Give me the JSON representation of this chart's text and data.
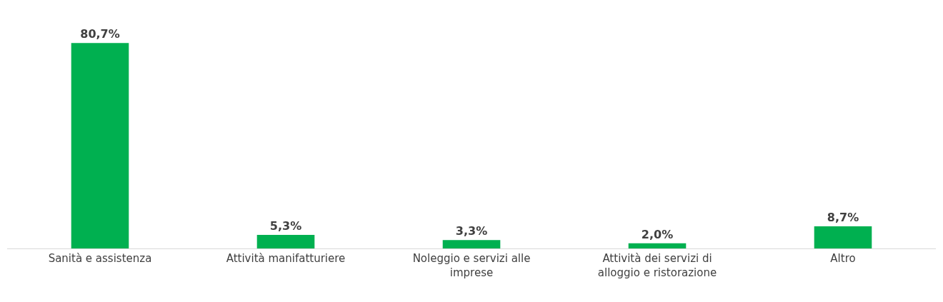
{
  "chart_data": {
    "type": "bar",
    "categories": [
      "Sanità e assistenza",
      "Attività manifatturiere",
      "Noleggio e servizi alle imprese",
      "Attività dei servizi di alloggio e ristorazione",
      "Altro"
    ],
    "values": [
      80.7,
      5.3,
      3.3,
      2.0,
      8.7
    ],
    "value_labels": [
      "80,7%",
      "5,3%",
      "3,3%",
      "2,0%",
      "8,7%"
    ],
    "color": "#00b050"
  }
}
